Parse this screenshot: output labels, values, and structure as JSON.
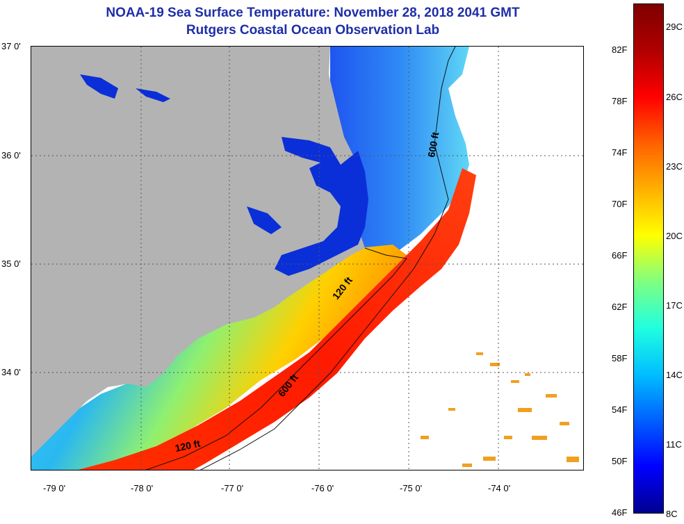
{
  "header": {
    "title": "NOAA-19 Sea Surface Temperature:  November 28, 2018 2041 GMT",
    "subtitle": "Rutgers Coastal Ocean Observation Lab"
  },
  "axes": {
    "lat_labels": [
      "37 0'",
      "36 0'",
      "35 0'",
      "34 0'"
    ],
    "lon_labels": [
      "-79 0'",
      "-78 0'",
      "-77 0'",
      "-76 0'",
      "-75 0'",
      "-74 0'"
    ]
  },
  "contours": {
    "isobath_120": "120 ft",
    "isobath_600": "600 ft"
  },
  "colorbar": {
    "fahrenheit_labels": [
      "82F",
      "78F",
      "74F",
      "70F",
      "66F",
      "62F",
      "58F",
      "54F",
      "50F",
      "46F"
    ],
    "celsius_labels": [
      "29C",
      "26C",
      "23C",
      "20C",
      "17C",
      "14C",
      "11C",
      "8C"
    ],
    "gradient_colors": [
      "#00008f",
      "#0000ff",
      "#0060ff",
      "#00bfff",
      "#20ffdf",
      "#80ff80",
      "#ffff00",
      "#ffb000",
      "#ff6000",
      "#ff0000",
      "#b00000",
      "#7f0000"
    ]
  },
  "map_colors": {
    "land": "#b3b3b3",
    "estuary": "#0a2fd8",
    "no_data": "#ffffff"
  }
}
